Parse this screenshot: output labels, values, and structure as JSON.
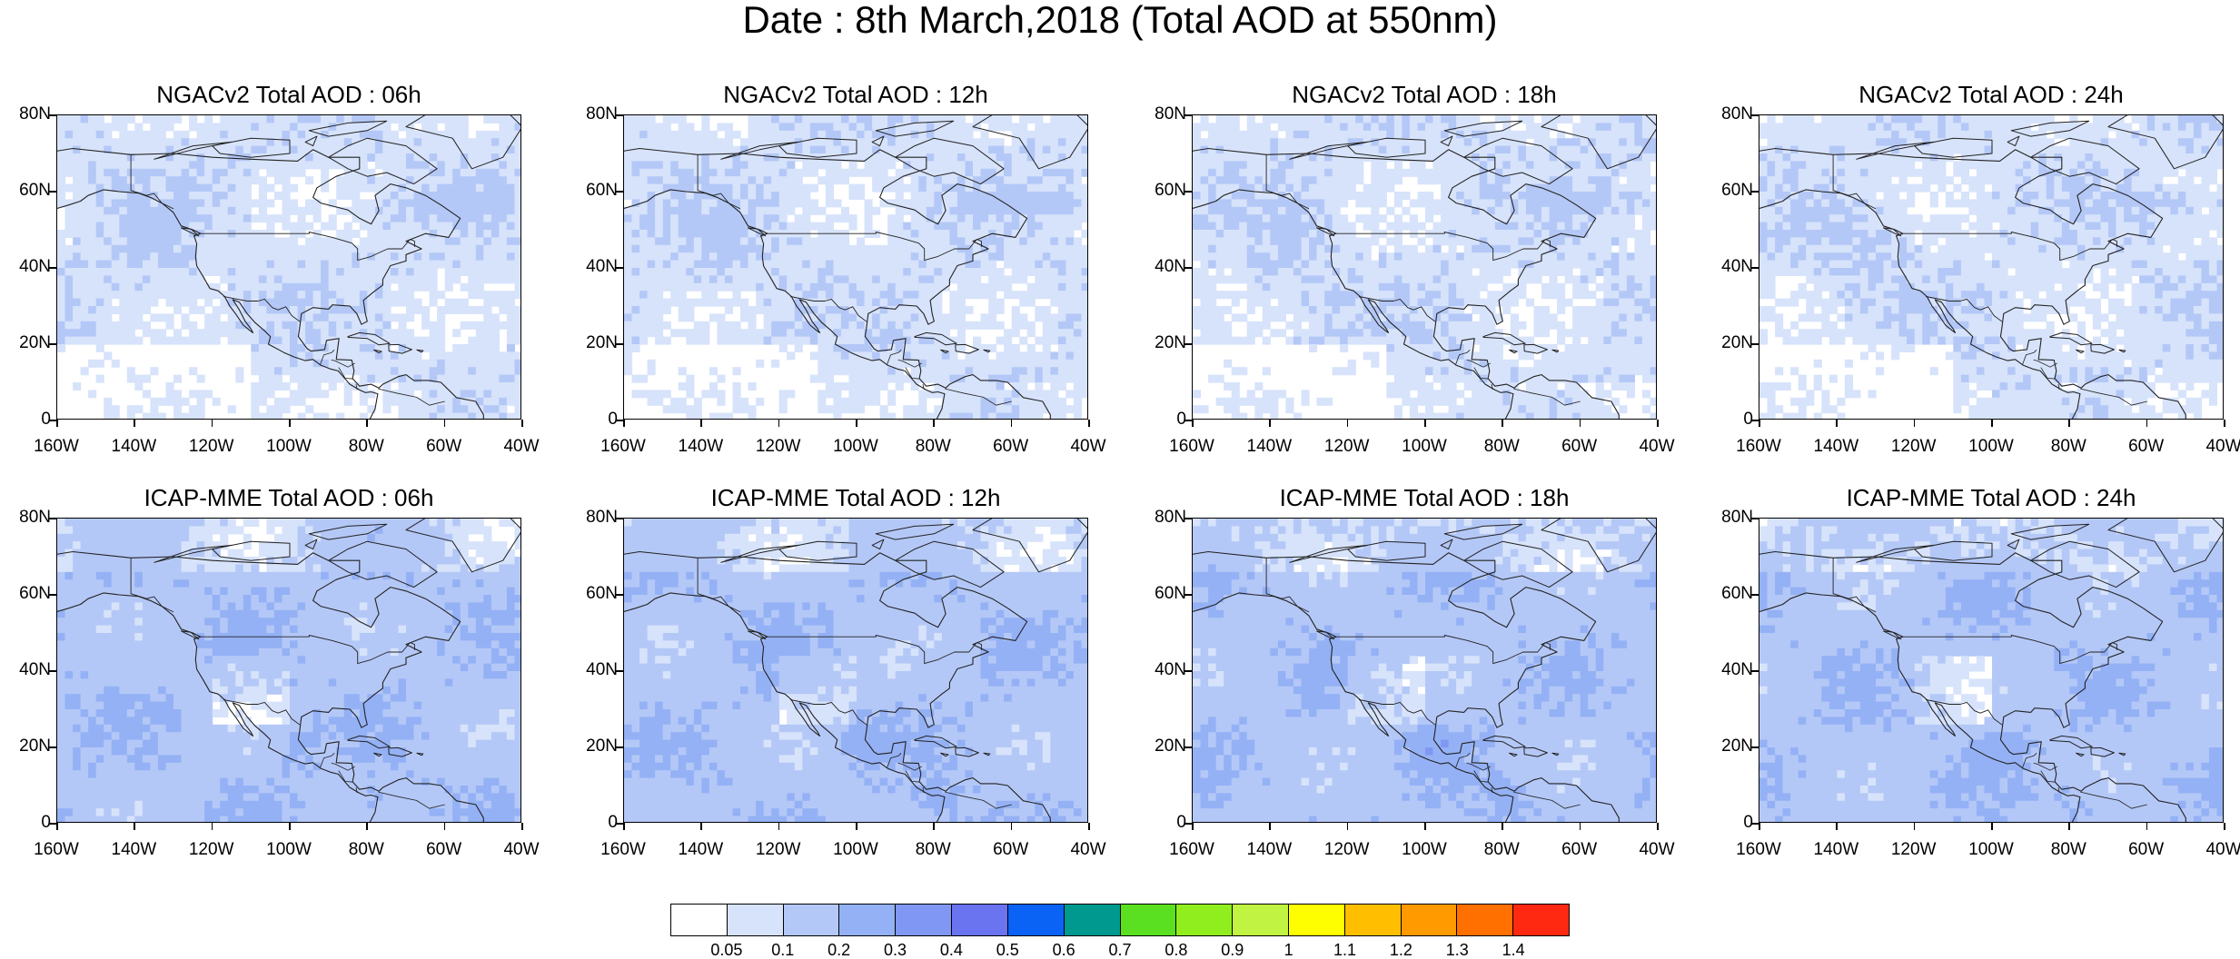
{
  "title": "Date : 8th March,2018 (Total AOD at 550nm)",
  "panels": [
    {
      "title": "NGACv2 Total AOD : 06h",
      "model": "ngac"
    },
    {
      "title": "NGACv2 Total AOD : 12h",
      "model": "ngac"
    },
    {
      "title": "NGACv2 Total AOD : 18h",
      "model": "ngac"
    },
    {
      "title": "NGACv2 Total AOD : 24h",
      "model": "ngac"
    },
    {
      "title": "ICAP-MME Total AOD : 06h",
      "model": "icap"
    },
    {
      "title": "ICAP-MME Total AOD : 12h",
      "model": "icap"
    },
    {
      "title": "ICAP-MME Total AOD : 18h",
      "model": "icap"
    },
    {
      "title": "ICAP-MME Total AOD : 24h",
      "model": "icap"
    }
  ],
  "axes": {
    "lat_labels": [
      "80N",
      "60N",
      "40N",
      "20N",
      "0"
    ],
    "lon_labels": [
      "160W",
      "140W",
      "120W",
      "100W",
      "80W",
      "60W",
      "40W"
    ],
    "lon_range": [
      -160,
      -40
    ],
    "lat_range": [
      0,
      80
    ]
  },
  "colorbar": {
    "labels": [
      "0.05",
      "0.1",
      "0.2",
      "0.3",
      "0.4",
      "0.5",
      "0.6",
      "0.7",
      "0.8",
      "0.9",
      "1",
      "1.1",
      "1.2",
      "1.3",
      "1.4"
    ],
    "colors": [
      "#ffffff",
      "#d7e3fb",
      "#b4c8f7",
      "#94b1f5",
      "#8098f3",
      "#6a73f0",
      "#0b63f5",
      "#00998f",
      "#5ae020",
      "#90ee1f",
      "#c0f342",
      "#fefe00",
      "#ffbf00",
      "#ff9a00",
      "#ff7000",
      "#ff2810"
    ]
  }
}
